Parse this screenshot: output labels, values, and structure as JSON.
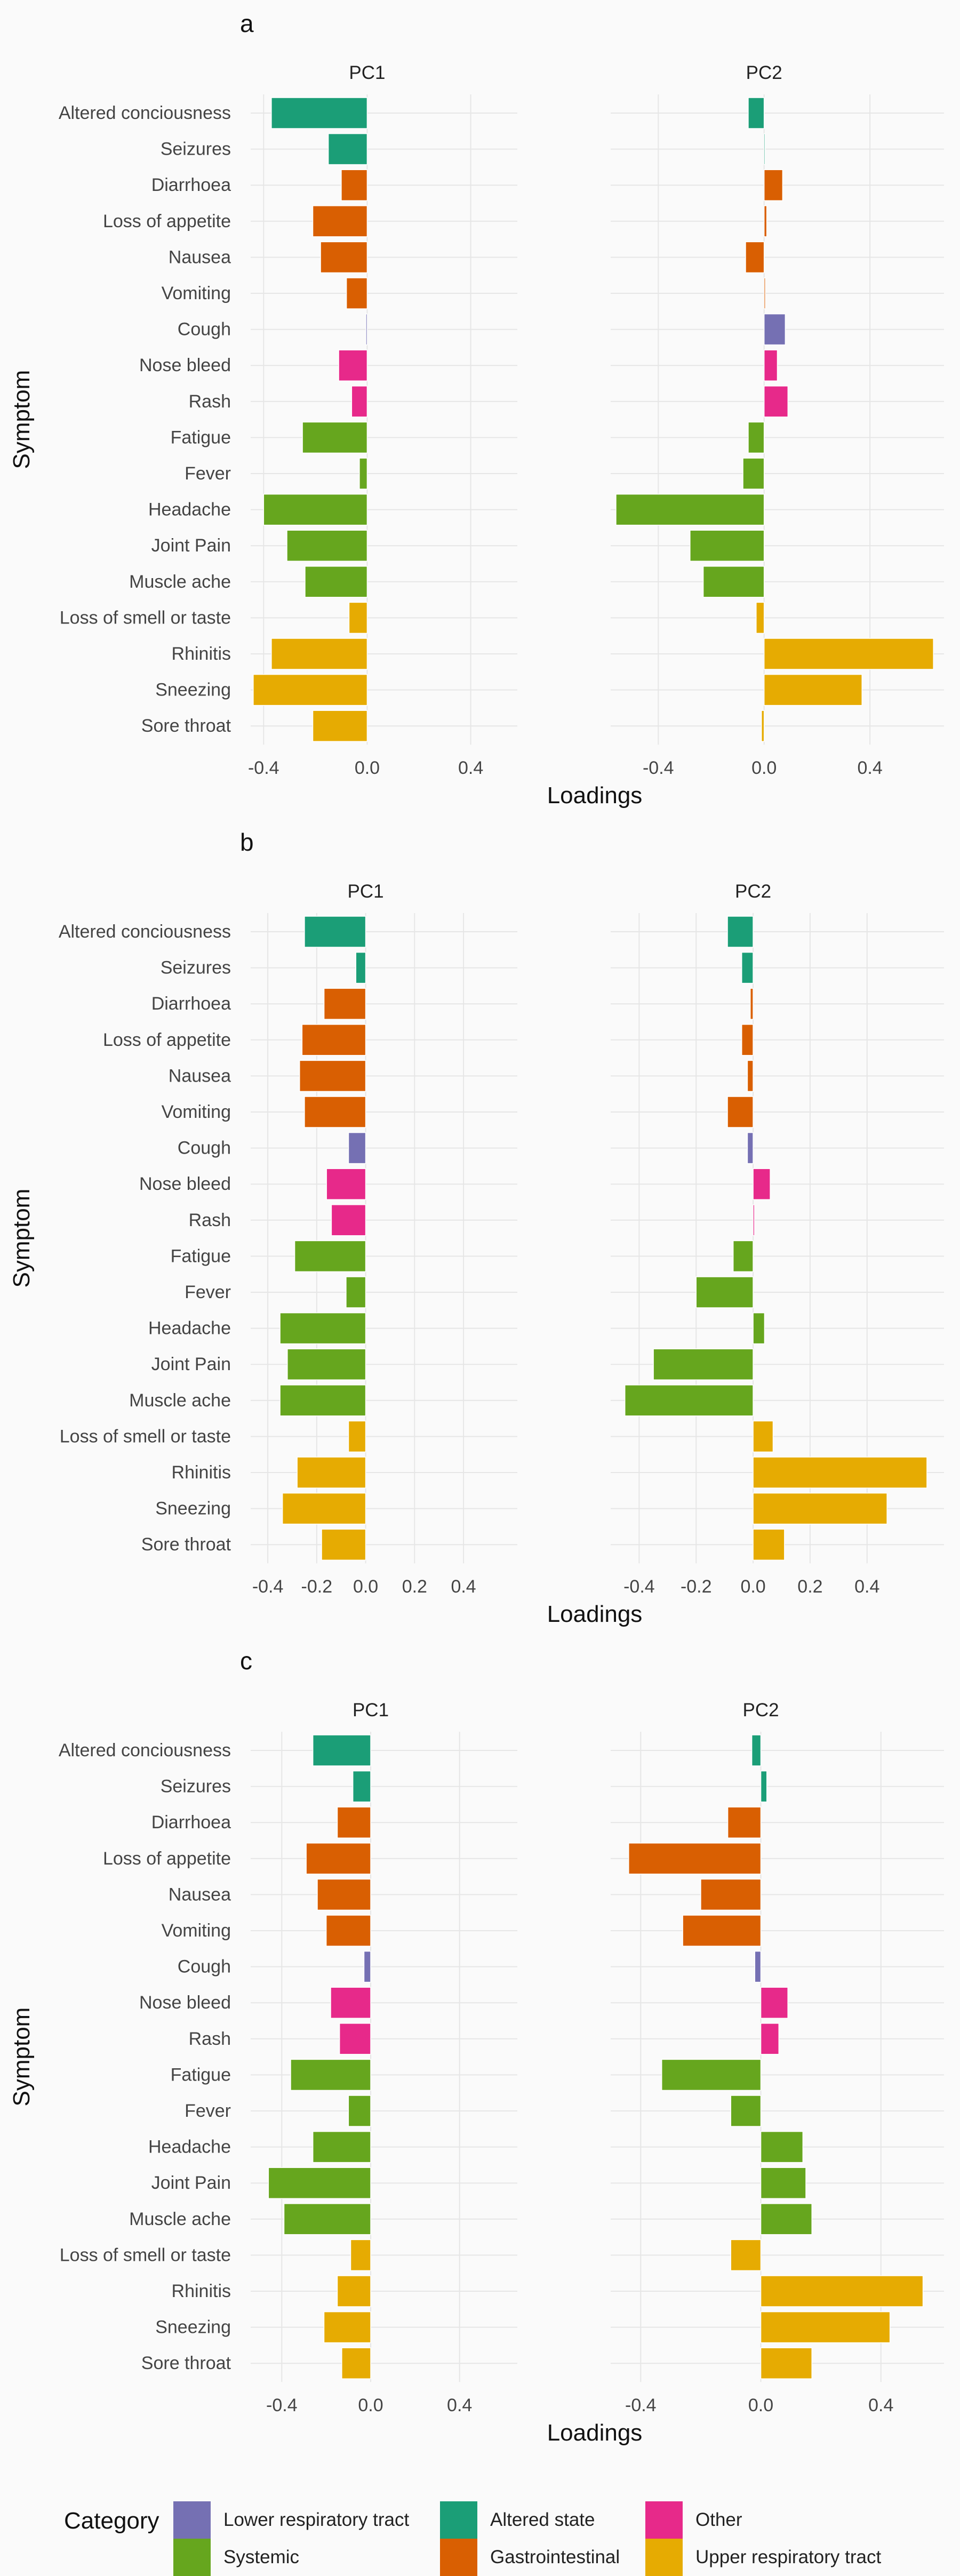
{
  "chart_data": [
    {
      "type": "bar",
      "panel_label": "a",
      "ylabel": "Symptom",
      "xlabel": "Loadings",
      "x_tick_labels": [
        "-0.4",
        "0.0",
        "0.4"
      ],
      "categories": [
        "Altered conciousness",
        "Seizures",
        "Diarrhoea",
        "Loss of appetite",
        "Nausea",
        "Vomiting",
        "Cough",
        "Nose bleed",
        "Rash",
        "Fatigue",
        "Fever",
        "Headache",
        "Joint Pain",
        "Muscle ache",
        "Loss of smell or taste",
        "Rhinitis",
        "Sneezing",
        "Sore throat"
      ],
      "series": [
        {
          "name": "PC1",
          "xlim": [
            -0.45,
            0.58
          ],
          "values": [
            -0.37,
            -0.15,
            -0.1,
            -0.21,
            -0.18,
            -0.08,
            -0.005,
            -0.11,
            -0.06,
            -0.25,
            -0.03,
            -0.4,
            -0.31,
            -0.24,
            -0.07,
            -0.37,
            -0.44,
            -0.21
          ]
        },
        {
          "name": "PC2",
          "xlim": [
            -0.58,
            0.68
          ],
          "values": [
            -0.06,
            0.0,
            0.07,
            0.01,
            -0.07,
            0.005,
            0.08,
            0.05,
            0.09,
            -0.06,
            -0.08,
            -0.56,
            -0.28,
            -0.23,
            -0.03,
            0.64,
            0.37,
            -0.01
          ]
        }
      ]
    },
    {
      "type": "bar",
      "panel_label": "b",
      "ylabel": "Symptom",
      "xlabel": "Loadings",
      "x_tick_labels": [
        "-0.4",
        "-0.2",
        "0.0",
        "0.2",
        "0.4"
      ],
      "categories": [
        "Altered conciousness",
        "Seizures",
        "Diarrhoea",
        "Loss of appetite",
        "Nausea",
        "Vomiting",
        "Cough",
        "Nose bleed",
        "Rash",
        "Fatigue",
        "Fever",
        "Headache",
        "Joint Pain",
        "Muscle ache",
        "Loss of smell or taste",
        "Rhinitis",
        "Sneezing",
        "Sore throat"
      ],
      "series": [
        {
          "name": "PC1",
          "xlim": [
            -0.47,
            0.62
          ],
          "values": [
            -0.25,
            -0.04,
            -0.17,
            -0.26,
            -0.27,
            -0.25,
            -0.07,
            -0.16,
            -0.14,
            -0.29,
            -0.08,
            -0.35,
            -0.32,
            -0.35,
            -0.07,
            -0.28,
            -0.34,
            -0.18
          ]
        },
        {
          "name": "PC2",
          "xlim": [
            -0.5,
            0.67
          ],
          "values": [
            -0.09,
            -0.04,
            -0.01,
            -0.04,
            -0.02,
            -0.09,
            -0.02,
            0.06,
            0.005,
            -0.07,
            -0.2,
            0.04,
            -0.35,
            -0.45,
            0.07,
            0.61,
            0.47,
            0.11
          ]
        }
      ]
    },
    {
      "type": "bar",
      "panel_label": "c",
      "ylabel": "Symptom",
      "xlabel": "Loadings",
      "x_tick_labels": [
        "-0.4",
        "0.0",
        "0.4"
      ],
      "categories": [
        "Altered conciousness",
        "Seizures",
        "Diarrhoea",
        "Loss of appetite",
        "Nausea",
        "Vomiting",
        "Cough",
        "Nose bleed",
        "Rash",
        "Fatigue",
        "Fever",
        "Headache",
        "Joint Pain",
        "Muscle ache",
        "Loss of smell or taste",
        "Rhinitis",
        "Sneezing",
        "Sore throat"
      ],
      "series": [
        {
          "name": "PC1",
          "xlim": [
            -0.54,
            0.66
          ],
          "values": [
            -0.26,
            -0.08,
            -0.15,
            -0.29,
            -0.24,
            -0.2,
            -0.03,
            -0.18,
            -0.14,
            -0.36,
            -0.1,
            -0.26,
            -0.46,
            -0.39,
            -0.09,
            -0.15,
            -0.21,
            -0.13
          ]
        },
        {
          "name": "PC2",
          "xlim": [
            -0.5,
            0.61
          ],
          "values": [
            -0.03,
            0.02,
            -0.11,
            -0.44,
            -0.2,
            -0.26,
            -0.02,
            0.09,
            0.06,
            -0.33,
            -0.1,
            0.14,
            0.15,
            0.17,
            -0.1,
            0.54,
            0.43,
            0.17
          ]
        }
      ]
    }
  ],
  "bar_category_colors": [
    "#1b9e77",
    "#1b9e77",
    "#d95f02",
    "#d95f02",
    "#d95f02",
    "#d95f02",
    "#7570b3",
    "#e7298a",
    "#e7298a",
    "#66a61e",
    "#66a61e",
    "#66a61e",
    "#66a61e",
    "#66a61e",
    "#e6ab02",
    "#e6ab02",
    "#e6ab02",
    "#e6ab02"
  ],
  "legend": {
    "title": "Category",
    "items": [
      {
        "label": "Lower respiratory tract",
        "color": "#7570b3"
      },
      {
        "label": "Altered state",
        "color": "#1b9e77"
      },
      {
        "label": "Other",
        "color": "#e7298a"
      },
      {
        "label": "Systemic",
        "color": "#66a61e"
      },
      {
        "label": "Gastrointestinal",
        "color": "#d95f02"
      },
      {
        "label": "Upper respiratory tract",
        "color": "#e6ab02"
      }
    ]
  }
}
